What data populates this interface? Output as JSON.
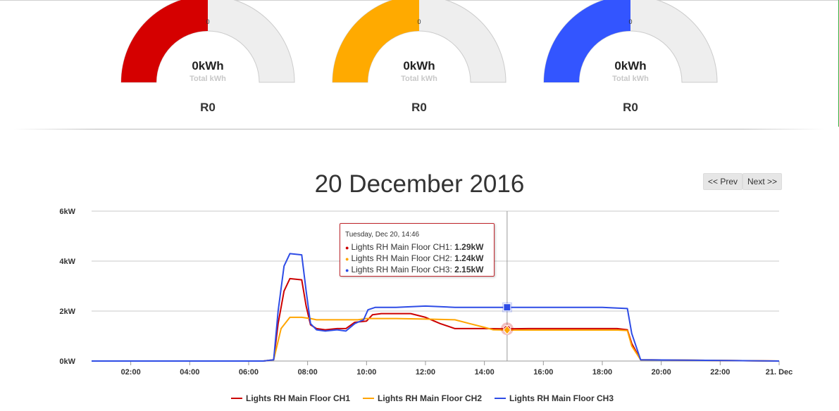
{
  "gauges": [
    {
      "tick": "0",
      "value": "0kWh",
      "subtitle": "Total kWh",
      "label": "R0",
      "color": "#d50000",
      "fraction": 0.5
    },
    {
      "tick": "0",
      "value": "0kWh",
      "subtitle": "Total kWh",
      "label": "R0",
      "color": "#ffaa00",
      "fraction": 0.5
    },
    {
      "tick": "0",
      "value": "0kWh",
      "subtitle": "Total kWh",
      "label": "R0",
      "color": "#3355ff",
      "fraction": 0.5
    }
  ],
  "navigation": {
    "prev_label": "<< Prev",
    "next_label": "Next >>"
  },
  "tooltip": {
    "header": "Tuesday, Dec 20, 14:46",
    "rows": [
      {
        "series": "Lights RH Main Floor CH1",
        "value": "1.29kW",
        "color": "#cc0000"
      },
      {
        "series": "Lights RH Main Floor CH2",
        "value": "1.24kW",
        "color": "#ffa500"
      },
      {
        "series": "Lights RH Main Floor CH3",
        "value": "2.15kW",
        "color": "#2e4ce6"
      }
    ]
  },
  "chart_data": {
    "type": "line",
    "title": "20 December 2016",
    "xlabel": "",
    "ylabel": "",
    "x_unit": "hours of day",
    "xlim": [
      0.67,
      24
    ],
    "ylim": [
      0,
      6
    ],
    "y_ticks": [
      {
        "value": 0,
        "label": "0kW"
      },
      {
        "value": 2,
        "label": "2kW"
      },
      {
        "value": 4,
        "label": "4kW"
      },
      {
        "value": 6,
        "label": "6kW"
      }
    ],
    "x_ticks": [
      {
        "value": 2,
        "label": "02:00"
      },
      {
        "value": 4,
        "label": "04:00"
      },
      {
        "value": 6,
        "label": "06:00"
      },
      {
        "value": 8,
        "label": "08:00"
      },
      {
        "value": 10,
        "label": "10:00"
      },
      {
        "value": 12,
        "label": "12:00"
      },
      {
        "value": 14,
        "label": "14:00"
      },
      {
        "value": 16,
        "label": "16:00"
      },
      {
        "value": 18,
        "label": "18:00"
      },
      {
        "value": 20,
        "label": "20:00"
      },
      {
        "value": 22,
        "label": "22:00"
      },
      {
        "value": 24,
        "label": "21. Dec"
      }
    ],
    "grid": true,
    "legend_position": "bottom",
    "crosshair_x": 14.77,
    "series": [
      {
        "name": "Lights RH Main Floor CH1",
        "color": "#cc0000",
        "x": [
          0.67,
          6.5,
          6.85,
          7.0,
          7.2,
          7.4,
          7.8,
          7.95,
          8.1,
          8.3,
          8.6,
          9.0,
          9.3,
          9.6,
          10.0,
          10.2,
          10.5,
          11.0,
          11.5,
          12.0,
          12.5,
          13.0,
          14.0,
          14.77,
          15.5,
          16.5,
          17.5,
          18.5,
          18.85,
          19.0,
          19.3,
          24.0
        ],
        "y": [
          0,
          0,
          0.05,
          1.5,
          2.8,
          3.3,
          3.25,
          2.2,
          1.45,
          1.3,
          1.25,
          1.3,
          1.3,
          1.55,
          1.6,
          1.85,
          1.9,
          1.9,
          1.9,
          1.75,
          1.5,
          1.3,
          1.3,
          1.29,
          1.3,
          1.3,
          1.3,
          1.3,
          1.25,
          0.7,
          0.05,
          0
        ]
      },
      {
        "name": "Lights RH Main Floor CH2",
        "color": "#ffa500",
        "x": [
          0.67,
          6.5,
          6.85,
          7.1,
          7.4,
          7.8,
          8.1,
          8.3,
          9.0,
          9.7,
          10.0,
          11.0,
          12.0,
          13.0,
          13.5,
          14.0,
          14.3,
          14.77,
          16.0,
          18.5,
          18.85,
          19.0,
          19.3,
          24.0
        ],
        "y": [
          0,
          0,
          0.05,
          1.3,
          1.75,
          1.75,
          1.7,
          1.65,
          1.65,
          1.65,
          1.7,
          1.7,
          1.68,
          1.65,
          1.5,
          1.35,
          1.25,
          1.24,
          1.24,
          1.24,
          1.22,
          0.6,
          0.05,
          0
        ]
      },
      {
        "name": "Lights RH Main Floor CH3",
        "color": "#2e4ce6",
        "x": [
          0.67,
          6.5,
          6.85,
          7.0,
          7.2,
          7.4,
          7.8,
          7.95,
          8.1,
          8.3,
          8.6,
          9.0,
          9.3,
          9.6,
          9.9,
          10.05,
          10.3,
          11.0,
          12.0,
          13.0,
          14.0,
          14.77,
          16.0,
          17.0,
          18.0,
          18.85,
          19.0,
          19.3,
          24.0
        ],
        "y": [
          0,
          0,
          0.05,
          2.0,
          3.8,
          4.3,
          4.25,
          2.8,
          1.5,
          1.25,
          1.2,
          1.25,
          1.2,
          1.5,
          1.65,
          2.05,
          2.15,
          2.15,
          2.2,
          2.15,
          2.15,
          2.15,
          2.15,
          2.15,
          2.15,
          2.1,
          1.1,
          0.05,
          0
        ]
      }
    ]
  }
}
